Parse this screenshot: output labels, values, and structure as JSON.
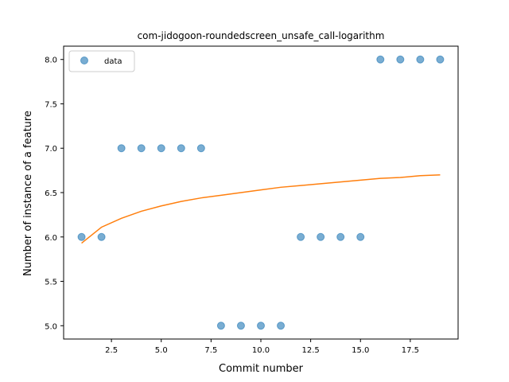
{
  "chart_data": {
    "type": "scatter",
    "title": "com-jidogoon-roundedscreen_unsafe_call-logarithm",
    "xlabel": "Commit number",
    "ylabel": "Number of instance of a feature",
    "xlim": [
      0.1,
      19.9
    ],
    "ylim": [
      4.85,
      8.15
    ],
    "xticks": [
      2.5,
      5.0,
      7.5,
      10.0,
      12.5,
      15.0,
      17.5
    ],
    "xtick_labels": [
      "2.5",
      "5.0",
      "7.5",
      "10.0",
      "12.5",
      "15.0",
      "17.5"
    ],
    "yticks": [
      5.0,
      5.5,
      6.0,
      6.5,
      7.0,
      7.5,
      8.0
    ],
    "ytick_labels": [
      "5.0",
      "5.5",
      "6.0",
      "6.5",
      "7.0",
      "7.5",
      "8.0"
    ],
    "legend_position": "top-left",
    "grid": false,
    "series": [
      {
        "name": "data",
        "kind": "scatter",
        "color": "#1f77b4",
        "x": [
          1,
          2,
          3,
          4,
          5,
          6,
          7,
          8,
          9,
          10,
          11,
          12,
          13,
          14,
          15,
          16,
          17,
          18,
          19
        ],
        "y": [
          6,
          6,
          7,
          7,
          7,
          7,
          7,
          5,
          5,
          5,
          5,
          6,
          6,
          6,
          6,
          8,
          8,
          8,
          8
        ]
      },
      {
        "kind": "line",
        "color": "#ff7f0e",
        "x": [
          1,
          2,
          3,
          4,
          5,
          6,
          7,
          8,
          9,
          10,
          11,
          12,
          13,
          14,
          15,
          16,
          17,
          18,
          19
        ],
        "y": [
          5.93,
          6.11,
          6.21,
          6.29,
          6.35,
          6.4,
          6.44,
          6.47,
          6.5,
          6.53,
          6.56,
          6.58,
          6.6,
          6.62,
          6.64,
          6.66,
          6.67,
          6.69,
          6.7
        ]
      }
    ]
  }
}
